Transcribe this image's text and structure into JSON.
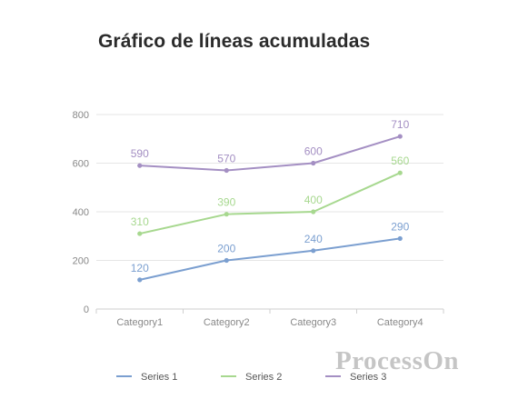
{
  "chart_data": {
    "type": "line",
    "title": "Gráfico de líneas acumuladas",
    "xlabel": "",
    "ylabel": "",
    "categories": [
      "Category1",
      "Category2",
      "Category3",
      "Category4"
    ],
    "ylim": [
      0,
      800
    ],
    "yticks": [
      0,
      200,
      400,
      600,
      800
    ],
    "grid": true,
    "legend_position": "bottom",
    "series": [
      {
        "name": "Series 1",
        "values": [
          120,
          200,
          240,
          290
        ],
        "color": "#7b9fd0"
      },
      {
        "name": "Series 2",
        "values": [
          310,
          390,
          400,
          560
        ],
        "color": "#a7d88f"
      },
      {
        "name": "Series 3",
        "values": [
          590,
          570,
          600,
          710
        ],
        "color": "#a48fc3"
      }
    ]
  },
  "watermark": {
    "text": "ProcessOn"
  }
}
